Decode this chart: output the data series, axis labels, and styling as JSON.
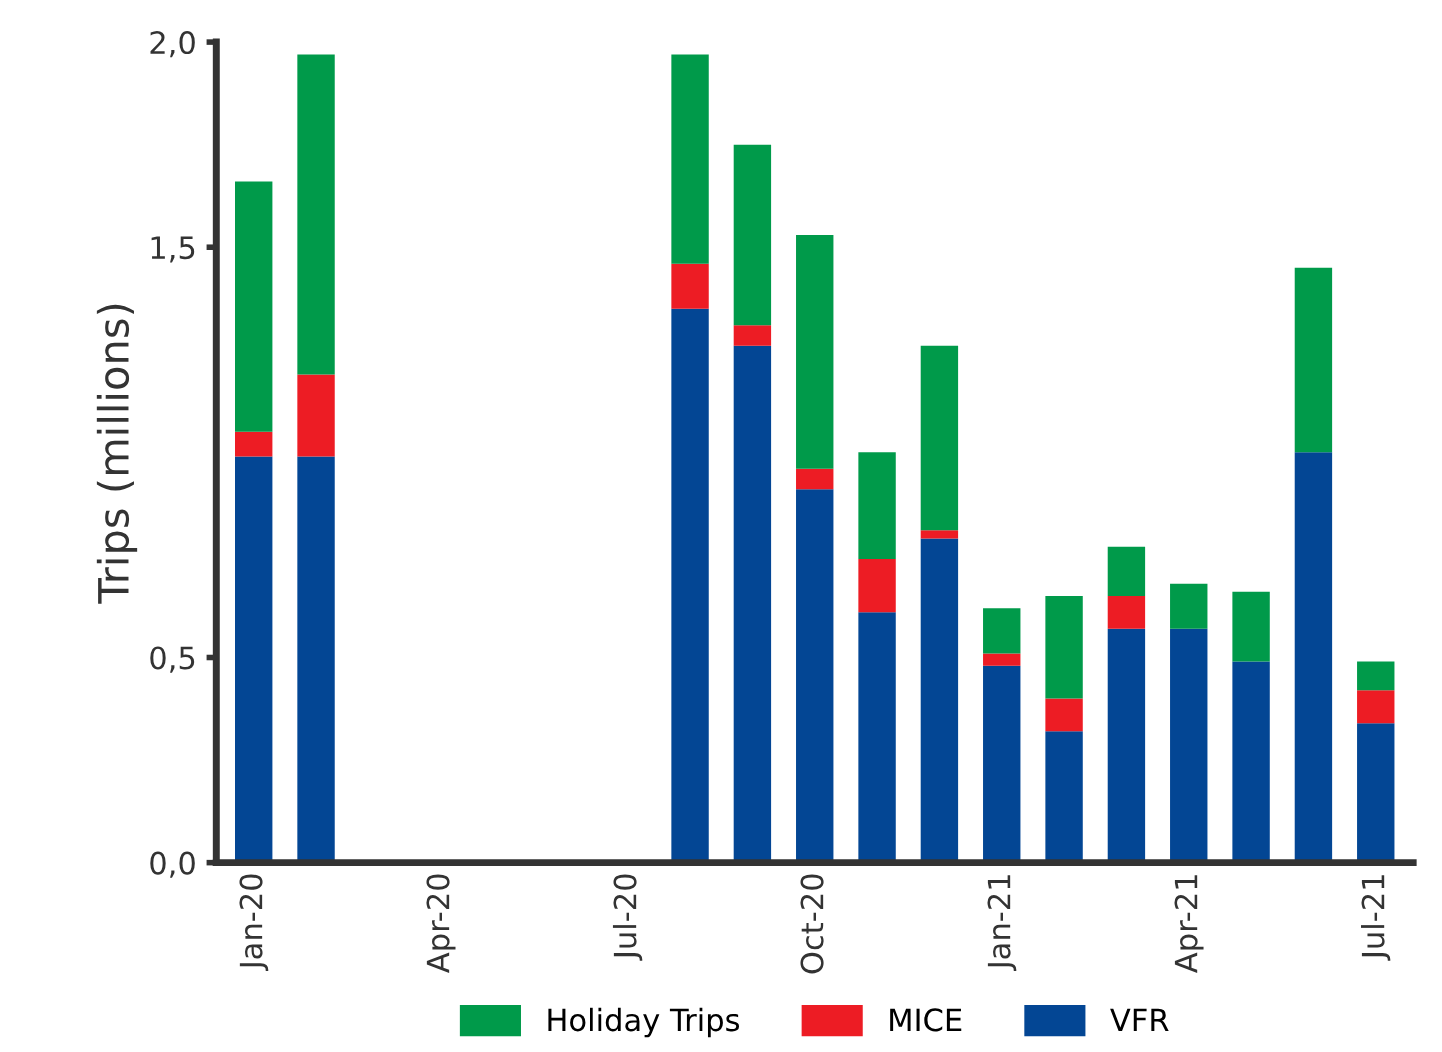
{
  "chart_data": {
    "type": "bar",
    "stacked": true,
    "ylabel": "Trips (millions)",
    "categories": [
      "Jan-20",
      null,
      null,
      "Apr-20",
      null,
      null,
      "Jul-20",
      null,
      null,
      "Oct-20",
      null,
      null,
      "Jan-21",
      null,
      null,
      "Apr-21",
      null,
      null,
      "Jul-21"
    ],
    "series": [
      {
        "name": "VFR",
        "color": "#034694",
        "values": [
          0.99,
          0.99,
          null,
          null,
          null,
          null,
          null,
          1.35,
          1.26,
          0.91,
          0.61,
          0.79,
          0.48,
          0.32,
          0.57,
          0.57,
          0.49,
          1.0,
          0.34
        ]
      },
      {
        "name": "MICE",
        "color": "#ed1c24",
        "values": [
          0.06,
          0.2,
          null,
          null,
          null,
          null,
          null,
          0.11,
          0.05,
          0.05,
          0.13,
          0.02,
          0.03,
          0.08,
          0.08,
          0,
          0,
          0,
          0.08
        ]
      },
      {
        "name": "Holiday Trips",
        "color": "#009a4a",
        "values": [
          0.61,
          0.78,
          null,
          null,
          null,
          null,
          null,
          0.51,
          0.44,
          0.57,
          0.26,
          0.45,
          0.11,
          0.25,
          0.12,
          0.11,
          0.17,
          0.45,
          0.07
        ]
      }
    ],
    "ylim": [
      0,
      2.0
    ],
    "yticks": [
      {
        "value": 0,
        "label": "0,0"
      },
      {
        "value": 0.5,
        "label": "0,5"
      },
      {
        "value": 1.5,
        "label": "1,5"
      },
      {
        "value": 2.0,
        "label": "2,0"
      }
    ],
    "grid": false,
    "legend": "bottom"
  }
}
